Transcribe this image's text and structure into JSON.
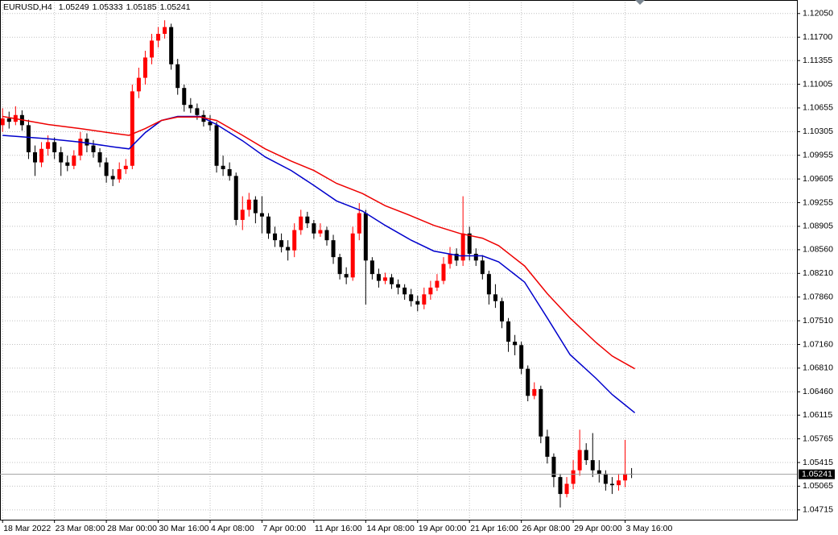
{
  "chart_data": {
    "type": "candlestick",
    "title": "EURUSD,H4",
    "title_values": [
      "1.05249",
      "1.05333",
      "1.05185",
      "1.05241"
    ],
    "up_color": "#ff0000",
    "down_color": "#000000",
    "grid": true,
    "xlim": [
      -0.4,
      122.5
    ],
    "xticks": [
      {
        "value": 0,
        "label": "18 Mar 2022"
      },
      {
        "value": 8,
        "label": "23 Mar 08:00"
      },
      {
        "value": 16,
        "label": "28 Mar 00:00"
      },
      {
        "value": 24,
        "label": "30 Mar 16:00"
      },
      {
        "value": 32,
        "label": "4 Apr 08:00"
      },
      {
        "value": 40,
        "label": "7 Apr 00:00"
      },
      {
        "value": 48,
        "label": "11 Apr 16:00"
      },
      {
        "value": 56,
        "label": "14 Apr 08:00"
      },
      {
        "value": 64,
        "label": "19 Apr 00:00"
      },
      {
        "value": 72,
        "label": "21 Apr 16:00"
      },
      {
        "value": 80,
        "label": "26 Apr 08:00"
      },
      {
        "value": 88,
        "label": "29 Apr 00:00"
      },
      {
        "value": 96,
        "label": "3 May 16:00"
      }
    ],
    "ylim": [
      1.0457,
      1.1225
    ],
    "yticks": [
      {
        "value": 1.1205,
        "label": "1.12050"
      },
      {
        "value": 1.117,
        "label": "1.11700"
      },
      {
        "value": 1.11355,
        "label": "1.11355"
      },
      {
        "value": 1.11005,
        "label": "1.11005"
      },
      {
        "value": 1.10655,
        "label": "1.10655"
      },
      {
        "value": 1.10305,
        "label": "1.10305"
      },
      {
        "value": 1.09955,
        "label": "1.09955"
      },
      {
        "value": 1.09605,
        "label": "1.09605"
      },
      {
        "value": 1.09255,
        "label": "1.09255"
      },
      {
        "value": 1.08905,
        "label": "1.08905"
      },
      {
        "value": 1.0856,
        "label": "1.08560"
      },
      {
        "value": 1.0821,
        "label": "1.08210"
      },
      {
        "value": 1.0786,
        "label": "1.07860"
      },
      {
        "value": 1.0751,
        "label": "1.07510"
      },
      {
        "value": 1.0716,
        "label": "1.07160"
      },
      {
        "value": 1.0681,
        "label": "1.06810"
      },
      {
        "value": 1.0646,
        "label": "1.06460"
      },
      {
        "value": 1.06115,
        "label": "1.06115"
      },
      {
        "value": 1.05765,
        "label": "1.05765"
      },
      {
        "value": 1.05415,
        "label": "1.05415"
      },
      {
        "value": 1.05065,
        "label": "1.05065"
      },
      {
        "value": 1.04715,
        "label": "1.04715"
      }
    ],
    "price_line": {
      "value": 1.05241,
      "label": "1.05241"
    },
    "open": [
      1.104,
      1.105,
      1.1045,
      1.1055,
      1.104,
      1.1,
      1.0985,
      1.1005,
      1.1015,
      1.1,
      1.0985,
      1.098,
      1.0995,
      1.102,
      1.101,
      1.1,
      1.0985,
      1.0965,
      1.096,
      1.0975,
      1.098,
      1.109,
      1.111,
      1.114,
      1.1165,
      1.1175,
      1.1185,
      1.113,
      1.1095,
      1.107,
      1.1065,
      1.1055,
      1.1045,
      1.104,
      1.098,
      1.0975,
      1.0965,
      1.09,
      1.0915,
      1.093,
      1.091,
      1.0905,
      1.088,
      1.087,
      1.086,
      1.0855,
      1.0885,
      1.0905,
      1.0895,
      1.088,
      1.0885,
      1.087,
      1.0845,
      1.082,
      1.0815,
      1.088,
      1.091,
      1.084,
      1.082,
      1.081,
      1.0815,
      1.0805,
      1.08,
      1.079,
      1.078,
      1.0775,
      1.079,
      1.08,
      1.081,
      1.0835,
      1.085,
      1.084,
      1.088,
      1.085,
      1.084,
      1.082,
      1.079,
      1.078,
      1.075,
      1.072,
      1.0715,
      1.068,
      1.064,
      1.065,
      1.058,
      1.055,
      1.052,
      1.0495,
      1.051,
      1.053,
      1.056,
      1.0545,
      1.053,
      1.0525,
      1.051,
      1.0508,
      1.0515,
      1.05249
    ],
    "high": [
      1.1065,
      1.106,
      1.1068,
      1.1062,
      1.1048,
      1.101,
      1.1015,
      1.1025,
      1.1022,
      1.1008,
      1.0995,
      1.1003,
      1.103,
      1.1028,
      1.1018,
      1.1006,
      1.0992,
      1.0975,
      1.0985,
      1.099,
      1.11,
      1.1125,
      1.115,
      1.1175,
      1.1185,
      1.1195,
      1.119,
      1.1138,
      1.11,
      1.108,
      1.1072,
      1.1062,
      1.1055,
      1.1045,
      1.0995,
      1.0985,
      1.097,
      1.0935,
      1.094,
      1.0935,
      1.0935,
      1.091,
      1.089,
      1.088,
      1.087,
      1.0895,
      1.0915,
      1.0912,
      1.09,
      1.0895,
      1.089,
      1.0878,
      1.085,
      1.083,
      1.089,
      1.0925,
      1.0915,
      1.0845,
      1.0828,
      1.0822,
      1.082,
      1.0812,
      1.0805,
      1.0798,
      1.0788,
      1.08,
      1.081,
      1.082,
      1.0845,
      1.086,
      1.0858,
      1.0935,
      1.089,
      1.0858,
      1.0848,
      1.0825,
      1.0805,
      1.0785,
      1.0755,
      1.073,
      1.072,
      1.0685,
      1.066,
      1.0655,
      1.059,
      1.0555,
      1.0525,
      1.052,
      1.0545,
      1.059,
      1.057,
      1.0585,
      1.0545,
      1.053,
      1.052,
      1.0525,
      1.0575,
      1.05333
    ],
    "low": [
      1.103,
      1.1035,
      1.104,
      1.1032,
      1.099,
      1.0965,
      1.0978,
      1.0995,
      1.099,
      1.0965,
      1.0972,
      1.0975,
      1.0988,
      1.1,
      1.0992,
      1.0978,
      1.0955,
      1.095,
      1.0955,
      1.0968,
      1.0975,
      1.108,
      1.11,
      1.113,
      1.1155,
      1.1168,
      1.1122,
      1.1085,
      1.106,
      1.1058,
      1.1048,
      1.1038,
      1.1032,
      1.097,
      1.0965,
      1.0958,
      1.0892,
      1.0885,
      1.0905,
      1.0895,
      1.088,
      1.0872,
      1.086,
      1.0852,
      1.084,
      1.0845,
      1.0878,
      1.0888,
      1.0872,
      1.0875,
      1.0862,
      1.0835,
      1.0812,
      1.0805,
      1.081,
      1.087,
      1.0775,
      1.0812,
      1.08,
      1.0805,
      1.0798,
      1.079,
      1.0782,
      1.0772,
      1.0765,
      1.0768,
      1.0782,
      1.0795,
      1.0805,
      1.0828,
      1.0832,
      1.0832,
      1.084,
      1.0832,
      1.0812,
      1.0775,
      1.077,
      1.074,
      1.0705,
      1.07,
      1.0672,
      1.0632,
      1.0635,
      1.057,
      1.054,
      1.0505,
      1.0475,
      1.049,
      1.0502,
      1.0522,
      1.0538,
      1.052,
      1.0512,
      1.05,
      1.0495,
      1.05,
      1.0505,
      1.05185
    ],
    "close": [
      1.105,
      1.1045,
      1.1055,
      1.104,
      1.1,
      1.0985,
      1.1005,
      1.1015,
      1.1,
      1.0985,
      1.098,
      1.0995,
      1.102,
      1.101,
      1.1,
      1.0985,
      1.0965,
      1.096,
      1.0975,
      1.098,
      1.109,
      1.111,
      1.114,
      1.1165,
      1.1175,
      1.1185,
      1.113,
      1.1095,
      1.107,
      1.1065,
      1.1055,
      1.1045,
      1.104,
      1.098,
      1.0975,
      1.0965,
      1.09,
      1.0915,
      1.093,
      1.091,
      1.0905,
      1.088,
      1.087,
      1.086,
      1.0855,
      1.0885,
      1.0905,
      1.0895,
      1.088,
      1.0885,
      1.087,
      1.0845,
      1.082,
      1.0815,
      1.088,
      1.091,
      1.084,
      1.082,
      1.081,
      1.0815,
      1.0805,
      1.08,
      1.079,
      1.078,
      1.0775,
      1.079,
      1.08,
      1.081,
      1.0835,
      1.085,
      1.084,
      1.088,
      1.085,
      1.084,
      1.082,
      1.079,
      1.078,
      1.075,
      1.072,
      1.0715,
      1.068,
      1.064,
      1.065,
      1.058,
      1.055,
      1.052,
      1.0495,
      1.051,
      1.053,
      1.056,
      1.0545,
      1.053,
      1.0525,
      1.051,
      1.0508,
      1.0515,
      1.0525,
      1.05241
    ],
    "ma_x": [
      0,
      7,
      12,
      17,
      19.5,
      22,
      24.5,
      27,
      30.5,
      33,
      37,
      40.5,
      44.5,
      48,
      51.5,
      55.5,
      59,
      63,
      66.5,
      70.5,
      74,
      76.5,
      80.5,
      84,
      87.5,
      91.5,
      94,
      97.5
    ],
    "series": [
      {
        "color": "#0000cc",
        "values": [
          1.1025,
          1.102,
          1.1015,
          1.1008,
          1.1005,
          1.1029,
          1.1047,
          1.1053,
          1.1053,
          1.1041,
          1.1017,
          1.0993,
          1.0973,
          1.0951,
          1.0928,
          1.0913,
          1.0892,
          1.087,
          1.0854,
          1.0847,
          1.0847,
          1.0838,
          1.0808,
          1.0755,
          1.0701,
          1.0666,
          1.0642,
          1.0615
        ]
      },
      {
        "color": "#ee0000",
        "values": [
          1.1053,
          1.1041,
          1.1035,
          1.1028,
          1.1025,
          1.1035,
          1.1047,
          1.1052,
          1.1052,
          1.1047,
          1.1025,
          1.1005,
          1.0987,
          1.0973,
          1.0954,
          1.0939,
          1.0921,
          1.0906,
          1.0892,
          1.088,
          1.0873,
          1.0862,
          1.0832,
          1.0791,
          1.0755,
          1.0719,
          1.0699,
          1.068
        ]
      }
    ]
  }
}
